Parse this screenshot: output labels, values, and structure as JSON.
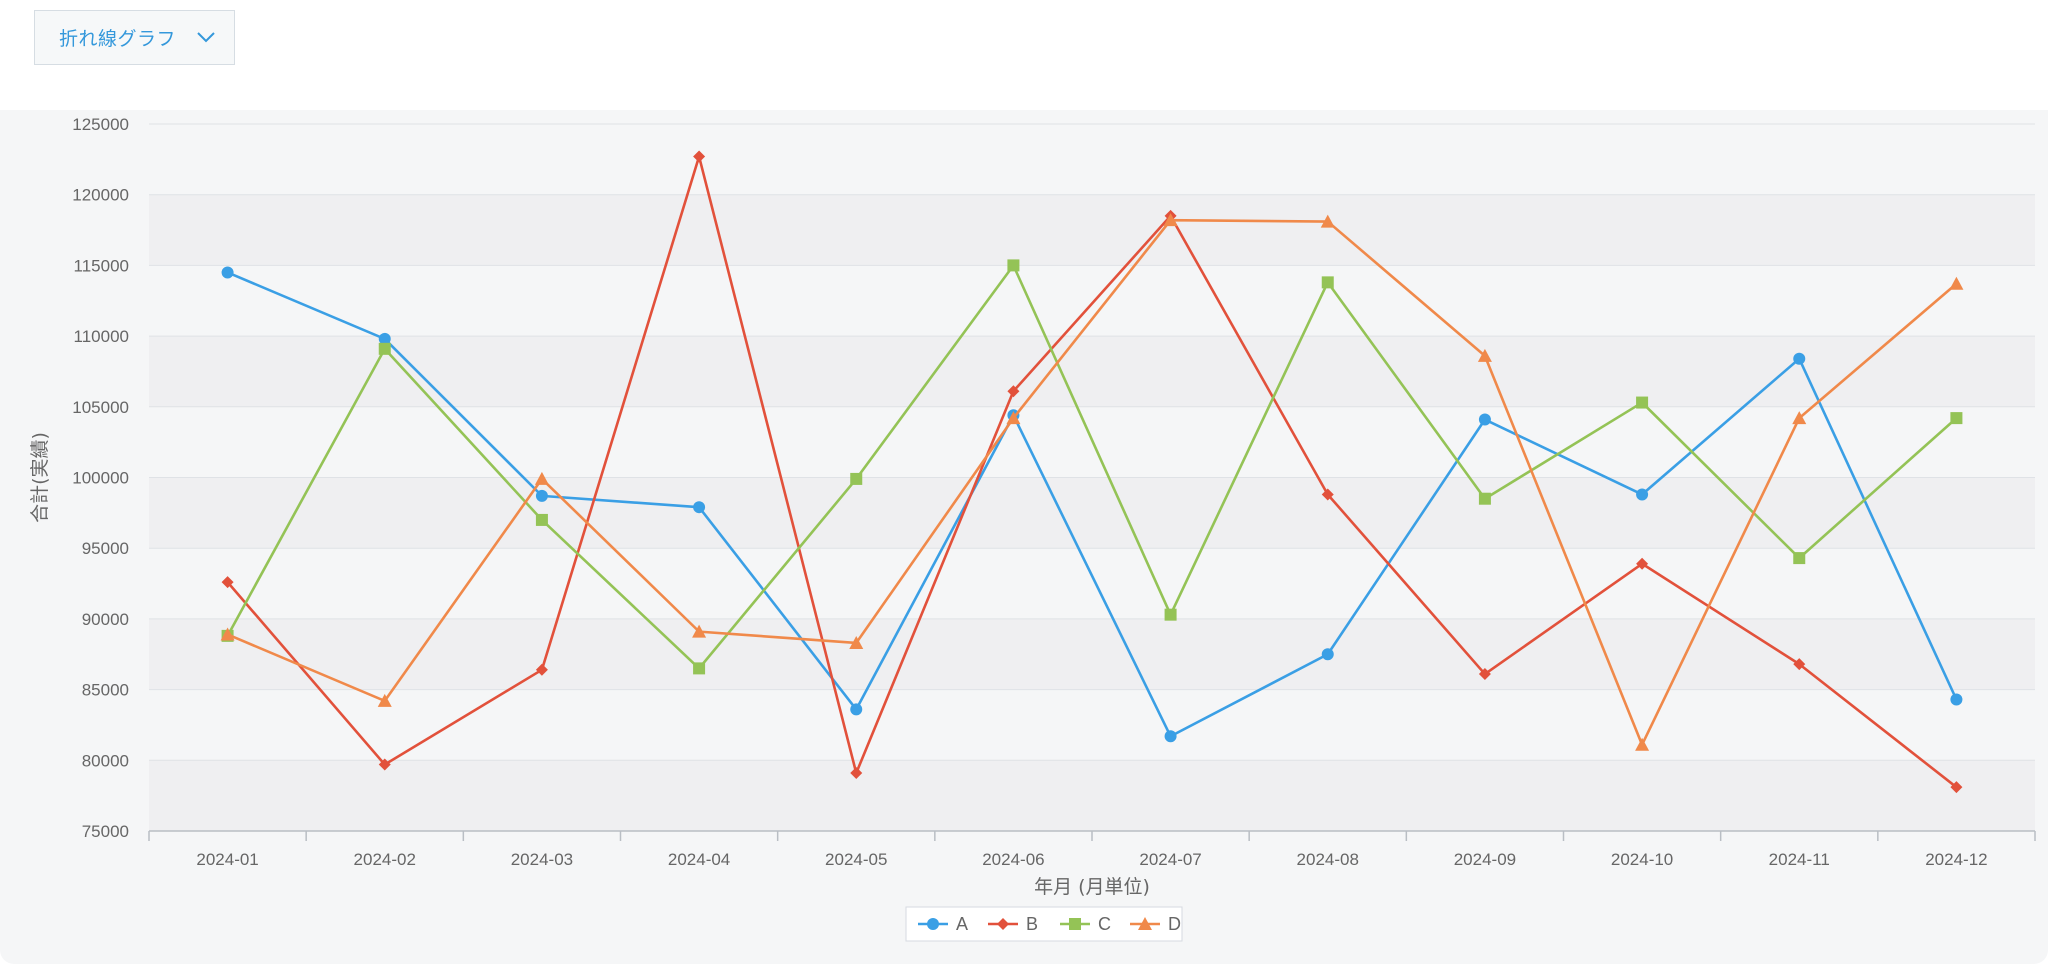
{
  "toolbar": {
    "chart_type_select": {
      "value": "折れ線グラフ",
      "icon": "chevron-down-icon"
    }
  },
  "colors": {
    "accent": "#3498db",
    "band": "#efeff1",
    "panel": "#f5f6f7",
    "grid": "#dfe2e6",
    "A": "#3a9fe5",
    "B": "#e2513b",
    "C": "#94c356",
    "D": "#f0894a"
  },
  "chart_data": {
    "type": "line",
    "categories": [
      "2024-01",
      "2024-02",
      "2024-03",
      "2024-04",
      "2024-05",
      "2024-06",
      "2024-07",
      "2024-08",
      "2024-09",
      "2024-10",
      "2024-11",
      "2024-12"
    ],
    "series": [
      {
        "name": "A",
        "marker": "circle",
        "color": "#3a9fe5",
        "values": [
          114500,
          109800,
          98700,
          97900,
          83600,
          104400,
          81700,
          87500,
          104100,
          98800,
          108400,
          84300
        ]
      },
      {
        "name": "B",
        "marker": "diamond",
        "color": "#e2513b",
        "values": [
          92600,
          79700,
          86400,
          122700,
          79100,
          106100,
          118500,
          98800,
          86100,
          93900,
          86800,
          78100
        ]
      },
      {
        "name": "C",
        "marker": "square",
        "color": "#94c356",
        "values": [
          88800,
          109100,
          97000,
          86500,
          99900,
          115000,
          90300,
          113800,
          98500,
          105300,
          94300,
          104200
        ]
      },
      {
        "name": "D",
        "marker": "triangle",
        "color": "#f0894a",
        "values": [
          88900,
          84200,
          99900,
          89100,
          88300,
          104200,
          118200,
          118100,
          108600,
          81100,
          104200,
          113700
        ]
      }
    ],
    "xlabel": "年月 (月単位)",
    "ylabel": "合計(実績)",
    "ylim": [
      75000,
      125000
    ],
    "yticks": [
      "75000",
      "80000",
      "85000",
      "90000",
      "95000",
      "100000",
      "105000",
      "110000",
      "115000",
      "120000",
      "125000"
    ],
    "grid": true,
    "legend": "bottom-center"
  }
}
